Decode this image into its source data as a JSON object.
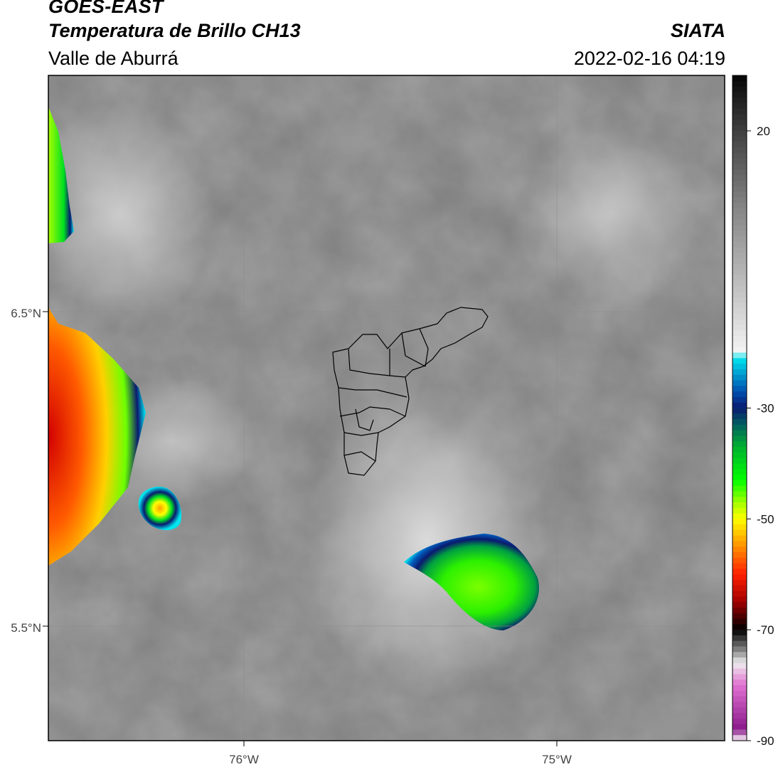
{
  "header": {
    "satellite": "GOES-EAST",
    "product": "Temperatura de Brillo CH13",
    "organization": "SIATA",
    "region": "Valle de Aburrá",
    "datetime": "2022-02-16 04:19"
  },
  "map": {
    "lat_labels": [
      "6.5°N",
      "5.5°N"
    ],
    "lon_labels": [
      "76°W",
      "75°W"
    ],
    "graticule_color": "#8c8c8c",
    "frame_color": "#000000",
    "boundary_color": "#000000"
  },
  "colorbar": {
    "tick_labels": [
      "20",
      "-30",
      "-50",
      "-70",
      "-90"
    ],
    "stops": [
      {
        "value": 30,
        "color": "#050505"
      },
      {
        "value": 20,
        "color": "#404040"
      },
      {
        "value": 5,
        "color": "#8a8a8a"
      },
      {
        "value": -10,
        "color": "#c8c8c8"
      },
      {
        "value": -20,
        "color": "#f4f4f4"
      },
      {
        "value": -21,
        "color": "#00e5ee"
      },
      {
        "value": -27,
        "color": "#0050b0"
      },
      {
        "value": -30,
        "color": "#0a1a70"
      },
      {
        "value": -33,
        "color": "#006060"
      },
      {
        "value": -37,
        "color": "#00b030"
      },
      {
        "value": -43,
        "color": "#00ff00"
      },
      {
        "value": -47,
        "color": "#a0ff00"
      },
      {
        "value": -50,
        "color": "#ffff00"
      },
      {
        "value": -55,
        "color": "#ff9000"
      },
      {
        "value": -60,
        "color": "#ff2000"
      },
      {
        "value": -65,
        "color": "#a00000"
      },
      {
        "value": -70,
        "color": "#000000"
      },
      {
        "value": -74,
        "color": "#909090"
      },
      {
        "value": -76,
        "color": "#eeeeee"
      },
      {
        "value": -80,
        "color": "#e070d0"
      },
      {
        "value": -88,
        "color": "#8a1a8a"
      },
      {
        "value": -90,
        "color": "#ffffff"
      }
    ]
  }
}
